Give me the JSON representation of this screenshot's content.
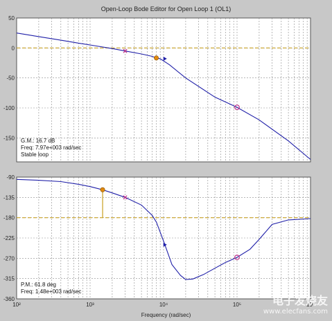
{
  "window": {
    "title": "Open-Loop Bode Editor for Open Loop 1 (OL1)"
  },
  "watermark": {
    "text": "电子发烧友",
    "url": "www.elecfans.com"
  },
  "colors": {
    "background": "#c8c8c8",
    "plot_bg": "#ffffff",
    "curve": "#1f1fa8",
    "reference_line": "#c8a020",
    "crossover_marker": "#e08a10",
    "pole_zero_marker": "#c0308a"
  },
  "chart_data": [
    {
      "type": "line",
      "panel": "magnitude",
      "xscale": "log",
      "xlim": [
        100,
        1000000
      ],
      "ylim": [
        -190,
        50
      ],
      "yticks": [
        50,
        0,
        -50,
        -100,
        -150
      ],
      "grid": true,
      "reference_line_y": 0,
      "series": [
        {
          "x": [
            100,
            200,
            400,
            700,
            1000,
            2000,
            3000,
            5000,
            7000,
            7970,
            9000,
            12000,
            20000,
            50000,
            100000,
            200000,
            500000,
            1000000
          ],
          "y": [
            25,
            19,
            13,
            8,
            5,
            -1,
            -5,
            -10,
            -14,
            -16.7,
            -18,
            -28,
            -50,
            -82,
            -99,
            -120,
            -155,
            -186
          ]
        }
      ],
      "markers": [
        {
          "kind": "crossover",
          "x": 7970,
          "y": -16.7
        },
        {
          "kind": "pole",
          "x": 3000,
          "y": -5
        },
        {
          "kind": "zero",
          "x": 100000,
          "y": -99
        },
        {
          "kind": "arrow",
          "x": 10500,
          "y": -18
        }
      ],
      "annotation": [
        "G.M.: 16.7 dB",
        "Freq: 7.97e+003 rad/sec",
        "Stable loop"
      ]
    },
    {
      "type": "line",
      "panel": "phase",
      "xscale": "log",
      "xlim": [
        100,
        1000000
      ],
      "ylim": [
        -360,
        -90
      ],
      "yticks": [
        -90,
        -135,
        -180,
        -225,
        -270,
        -315,
        -360
      ],
      "xticks": [
        100,
        1000,
        10000,
        100000,
        1000000
      ],
      "xtick_labels": [
        "10²",
        "10³",
        "10⁴",
        "10⁵",
        "10⁶"
      ],
      "xlabel": "Frequency (rad/sec)",
      "grid": true,
      "reference_line_y": -180,
      "series": [
        {
          "x": [
            100,
            200,
            400,
            700,
            1000,
            1480,
            2000,
            3000,
            5000,
            7000,
            8000,
            10000,
            13000,
            17000,
            20000,
            25000,
            35000,
            50000,
            70000,
            100000,
            150000,
            200000,
            300000,
            500000,
            1000000
          ],
          "y": [
            -95,
            -97,
            -100,
            -106,
            -111,
            -118,
            -125,
            -135,
            -152,
            -175,
            -190,
            -232,
            -284,
            -308,
            -317,
            -316,
            -306,
            -292,
            -279,
            -268,
            -250,
            -228,
            -195,
            -185,
            -182
          ]
        }
      ],
      "markers": [
        {
          "kind": "crossover",
          "x": 1480,
          "y": -118
        },
        {
          "kind": "pole",
          "x": 3000,
          "y": -135
        },
        {
          "kind": "zero",
          "x": 100000,
          "y": -268
        },
        {
          "kind": "arrow",
          "x": 10500,
          "y": -240
        }
      ],
      "annotation": [
        "P.M.: 61.8 deg",
        "Freq: 1.48e+003 rad/sec"
      ]
    }
  ]
}
